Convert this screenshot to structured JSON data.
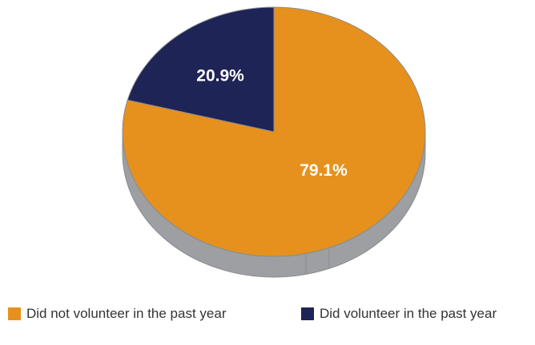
{
  "chart_data": {
    "type": "pie",
    "style": "3d",
    "slices": [
      {
        "name": "Did not volunteer in the past year",
        "value": 79.1,
        "label": "79.1%",
        "color": "#E6911E"
      },
      {
        "name": "Did volunteer in the past year",
        "value": 20.9,
        "label": "20.9%",
        "color": "#1F2456"
      }
    ],
    "legend_position": "bottom",
    "side_color": "#9D9FA2"
  }
}
